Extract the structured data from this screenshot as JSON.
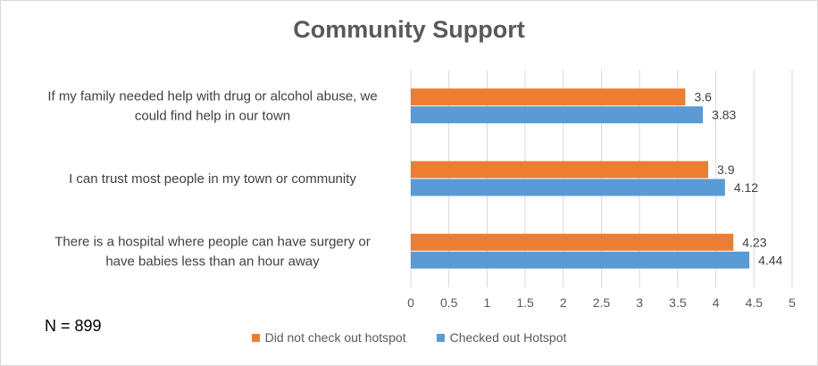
{
  "note": "N = 899",
  "colors": {
    "not_checked": "#ED7D31",
    "checked": "#5B9BD5",
    "grid": "#D9D9D9",
    "title": "#595959"
  },
  "chart_data": {
    "type": "bar",
    "orientation": "horizontal",
    "title": "Community Support",
    "xlabel": "",
    "ylabel": "",
    "xlim": [
      0,
      5
    ],
    "ticks": [
      "0",
      "0.5",
      "1",
      "1.5",
      "2",
      "2.5",
      "3",
      "3.5",
      "4",
      "4.5",
      "5"
    ],
    "grid": true,
    "legend_position": "bottom",
    "categories": [
      [
        "If my family needed help with drug or alcohol abuse, we",
        "could find help in our town"
      ],
      [
        "I can trust most people in my town or community"
      ],
      [
        "There is a hospital where people can have surgery or",
        "have babies less than an hour away"
      ]
    ],
    "series": [
      {
        "name": "Did not check out hotspot",
        "color": "#ED7D31",
        "values": [
          3.6,
          3.9,
          4.23
        ],
        "labels": [
          "3.6",
          "3.9",
          "4.23"
        ]
      },
      {
        "name": "Checked out Hotspot",
        "color": "#5B9BD5",
        "values": [
          3.83,
          4.12,
          4.44
        ],
        "labels": [
          "3.83",
          "4.12",
          "4.44"
        ]
      }
    ]
  }
}
